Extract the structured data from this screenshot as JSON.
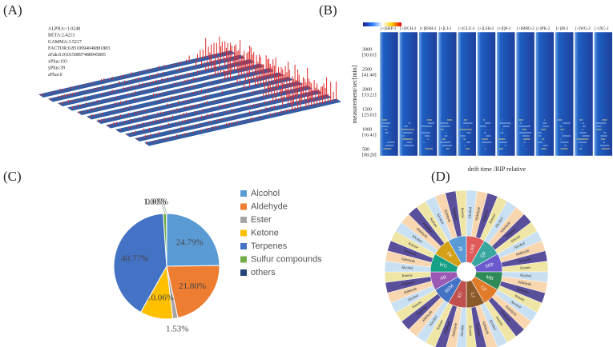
{
  "panel_labels": [
    "(A)",
    "(B)",
    "(C)",
    "(D)"
  ],
  "panel_a": {
    "params": [
      "ALPHA:-1.0248",
      "BETA:2.4213",
      "GAMMA:3.5217",
      "FACTOR:0.8510994040881883",
      "zFak:0.010150897488945895",
      "xPlus:193",
      "yPlus:39",
      "zPlus:0"
    ]
  },
  "panel_b": {
    "samples": [
      "[+]SHP-2",
      "[+]FCH-2",
      "[+]BSM-2",
      "[+]LJ-2",
      "[+]CLU-2",
      "[+]LSH-2",
      "[+]QP-2",
      "[+]MBU-2",
      "[+]PK-2",
      "[+]JB-2",
      "[+]WG-2",
      "[+]XC-2"
    ],
    "ylabel": "measurement/sec[min]",
    "xlabel": "drift time /RIP relative",
    "yticks": [
      [
        "3000",
        "[50:01]"
      ],
      [
        "2500",
        "[41:40]"
      ],
      [
        "2000",
        "[33:21]"
      ],
      [
        "1500",
        "[25:01]"
      ],
      [
        "1000",
        "[16:41]"
      ],
      [
        "500",
        "[08:20]"
      ]
    ]
  },
  "chart_data": {
    "type": "pie",
    "categories": [
      "Alcohol",
      "Aldehyde",
      "Ester",
      "Ketone",
      "Terpenes",
      "Sulfur compounds",
      "others"
    ],
    "values": [
      24.79,
      21.8,
      1.53,
      10.06,
      40.77,
      1.0,
      0.05
    ],
    "value_labels": [
      "24.79%",
      "21.80%",
      "1.53%",
      "10.06%",
      "40.77%",
      "1.00%",
      "0.05%"
    ],
    "colors": [
      "#5b9bd5",
      "#ed7d31",
      "#a5a5a5",
      "#ffc000",
      "#4472c4",
      "#70ad47",
      "#264478"
    ],
    "legend": "right"
  },
  "panel_d": {
    "sectors": [
      "LSH",
      "QP",
      "SHP",
      "MB",
      "GF",
      "LJ",
      "XC",
      "BSM",
      "AB",
      "WG",
      "PK",
      "JB"
    ],
    "classes": [
      "Alcohol",
      "Aldehyde",
      "Terpenes",
      "Ketone"
    ]
  }
}
